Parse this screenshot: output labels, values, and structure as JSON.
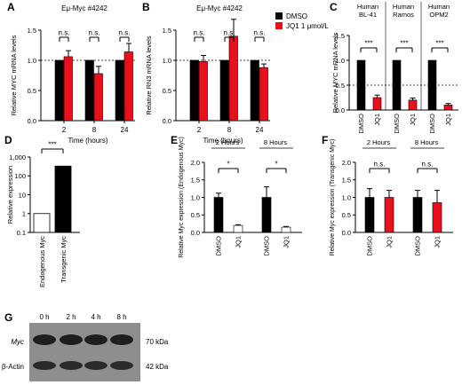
{
  "colors": {
    "dmso": "#000000",
    "jq1": "#e8101b",
    "endogenous": "#ffffff",
    "transgenic": "#000000"
  },
  "chart_data": [
    {
      "panel": "A",
      "type": "bar",
      "title": "Eμ-Myc #4242",
      "xlabel": "Time (hours)",
      "ylabel": "Relative MYC mRNA levels",
      "ylim": [
        0,
        1.5
      ],
      "yticks": [
        "0.0",
        "0.5",
        "1.0",
        "1.5"
      ],
      "reference_line": 1.0,
      "categories": [
        "2",
        "8",
        "24"
      ],
      "series": [
        {
          "name": "DMSO",
          "values": [
            1.0,
            1.0,
            1.0
          ],
          "errors": [
            0,
            0,
            0
          ]
        },
        {
          "name": "JQ1 1 μmol/L",
          "values": [
            1.06,
            0.78,
            1.14
          ],
          "errors": [
            0.1,
            0.12,
            0.14
          ]
        }
      ],
      "significance": [
        "n.s.",
        "n.s.",
        "n.s."
      ]
    },
    {
      "panel": "B",
      "type": "bar",
      "title": "Eμ-Myc #4242",
      "xlabel": "Time (hours)",
      "ylabel": "Relative RN3 mRNA levels",
      "ylim": [
        0,
        1.5
      ],
      "yticks": [
        "0.0",
        "0.5",
        "1.0",
        "1.5"
      ],
      "reference_line": 1.0,
      "categories": [
        "2",
        "8",
        "24"
      ],
      "series": [
        {
          "name": "DMSO",
          "values": [
            1.0,
            1.0,
            1.0
          ],
          "errors": [
            0,
            0,
            0
          ]
        },
        {
          "name": "JQ1 1 μmol/L",
          "values": [
            0.98,
            1.4,
            0.88
          ],
          "errors": [
            0.1,
            0.28,
            0.06
          ]
        }
      ],
      "significance": [
        "n.s.",
        "n.s.",
        "n.s."
      ],
      "legend": {
        "position": "top-right",
        "entries": [
          "DMSO",
          "JQ1 1 μmol/L"
        ]
      }
    },
    {
      "panel": "C",
      "type": "bar",
      "ylabel": "Relative MYC mRNA levels",
      "ylim": [
        0,
        1.5
      ],
      "yticks": [
        "0.0",
        "0.5",
        "1.0",
        "1.5"
      ],
      "reference_line": 0.5,
      "groups": [
        {
          "label": "Human BL-41",
          "categories": [
            "DMSO",
            "JQ1"
          ],
          "values": [
            1.0,
            0.25
          ],
          "errors": [
            0,
            0.05
          ],
          "significance": "***"
        },
        {
          "label": "Human Ramos",
          "categories": [
            "DMSO",
            "JQ1"
          ],
          "values": [
            1.0,
            0.2
          ],
          "errors": [
            0,
            0.04
          ],
          "significance": "***"
        },
        {
          "label": "Human OPM2",
          "categories": [
            "DMSO",
            "JQ1"
          ],
          "values": [
            1.0,
            0.1
          ],
          "errors": [
            0,
            0.03
          ],
          "significance": "***"
        }
      ]
    },
    {
      "panel": "D",
      "type": "bar",
      "ylabel": "Relative expression",
      "yscale": "log",
      "ylim": [
        0.1,
        1000
      ],
      "yticks": [
        "0.1",
        "1",
        "10",
        "100",
        "1,000"
      ],
      "categories": [
        "Endogenous Myc",
        "Transgenic Myc"
      ],
      "values": [
        1.0,
        330
      ],
      "significance": "***"
    },
    {
      "panel": "E",
      "type": "bar",
      "ylabel": "Relative Myc expression (Endogenous Myc)",
      "ylim": [
        0,
        2.0
      ],
      "yticks": [
        "0.0",
        "0.5",
        "1.0",
        "1.5",
        "2.0"
      ],
      "groups": [
        {
          "label": "2 Hours",
          "categories": [
            "DMSO",
            "JQ1"
          ],
          "values": [
            1.0,
            0.2
          ],
          "errors": [
            0.12,
            0.02
          ],
          "significance": "*"
        },
        {
          "label": "8 Hours",
          "categories": [
            "DMSO",
            "JQ1"
          ],
          "values": [
            1.0,
            0.15
          ],
          "errors": [
            0.3,
            0.02
          ],
          "significance": "*"
        }
      ]
    },
    {
      "panel": "F",
      "type": "bar",
      "ylabel": "Relative Myc expression (Transgenic Myc)",
      "ylim": [
        0,
        2.0
      ],
      "yticks": [
        "0.0",
        "0.5",
        "1.0",
        "1.5",
        "2.0"
      ],
      "groups": [
        {
          "label": "2 Hours",
          "categories": [
            "DMSO",
            "JQ1"
          ],
          "values": [
            1.0,
            1.0
          ],
          "errors": [
            0.25,
            0.2
          ],
          "significance": "n.s."
        },
        {
          "label": "8 Hours",
          "categories": [
            "DMSO",
            "JQ1"
          ],
          "values": [
            1.0,
            0.85
          ],
          "errors": [
            0.2,
            0.35
          ],
          "significance": "n.s."
        }
      ]
    }
  ],
  "blot": {
    "panel": "G",
    "lanes": [
      "0 h",
      "2 h",
      "4 h",
      "8 h"
    ],
    "rows": [
      {
        "label": "Myc",
        "size": "70 kDa"
      },
      {
        "label": "β-Actin",
        "size": "42 kDa"
      }
    ]
  }
}
